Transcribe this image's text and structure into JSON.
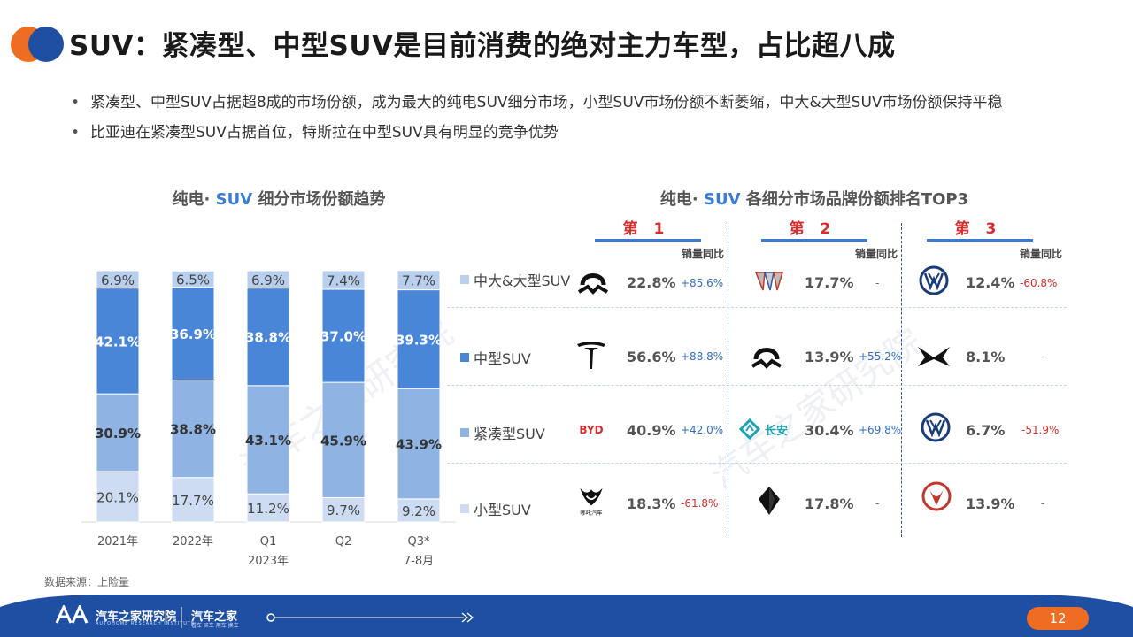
{
  "header": {
    "title": "SUV：紧凑型、中型SUV是目前消费的绝对主力车型，占比超八成"
  },
  "bullets": [
    "紧凑型、中型SUV占据超8成的市场份额，成为最大的纯电SUV细分市场，小型SUV市场份额不断萎缩，中大&大型SUV市场份额保持平稳",
    "比亚迪在紧凑型SUV占据首位，特斯拉在中型SUV具有明显的竞争优势"
  ],
  "left_subtitle": {
    "pre": "纯电· ",
    "hl": "SUV",
    "post": " 细分市场份额趋势"
  },
  "right_subtitle": {
    "pre": "纯电· ",
    "hl": "SUV",
    "post": " 各细分市场品牌份额排名TOP3"
  },
  "chart_data": {
    "type": "bar",
    "stacked": true,
    "categories": [
      "2021年",
      "2022年",
      "Q1",
      "Q2",
      "Q3*"
    ],
    "category_sublabels": [
      "",
      "",
      "2023年",
      "",
      "7-8月"
    ],
    "series": [
      {
        "name": "小型SUV",
        "values": [
          20.1,
          17.7,
          11.2,
          9.7,
          9.2
        ],
        "color": "#cddcf2",
        "label_color": "#444444"
      },
      {
        "name": "紧凑型SUV",
        "values": [
          30.9,
          38.8,
          43.1,
          45.9,
          43.9
        ],
        "color": "#8fb3e3",
        "label_color": "#333333"
      },
      {
        "name": "中型SUV",
        "values": [
          42.1,
          36.9,
          38.8,
          37.0,
          39.3
        ],
        "color": "#4a86d8",
        "label_color": "#ffffff"
      },
      {
        "name": "中大&大型SUV",
        "values": [
          6.9,
          6.5,
          6.9,
          7.4,
          7.7
        ],
        "color": "#b9cfee",
        "label_color": "#444444"
      }
    ],
    "ylim": [
      0,
      100
    ],
    "unit": "%"
  },
  "legend_colors": {
    "中大&大型SUV": "#b9cfee",
    "中型SUV": "#4a86d8",
    "紧凑型SUV": "#8fb3e3",
    "小型SUV": "#cddcf2"
  },
  "ranking": {
    "rank_labels": [
      "第 1",
      "第 2",
      "第 3"
    ],
    "yoy_header": "销量同比",
    "segments": [
      {
        "name": "中大&大型SUV",
        "entries": [
          {
            "brand_icon": "nio-icon",
            "share": "22.8%",
            "yoy": "+85.6%",
            "yoy_type": "pos"
          },
          {
            "brand_icon": "buick-icon",
            "share": "17.7%",
            "yoy": "-",
            "yoy_type": "nil"
          },
          {
            "brand_icon": "volkswagen-icon",
            "share": "12.4%",
            "yoy": "-60.8%",
            "yoy_type": "neg"
          }
        ]
      },
      {
        "name": "中型SUV",
        "entries": [
          {
            "brand_icon": "tesla-icon",
            "share": "56.6%",
            "yoy": "+88.8%",
            "yoy_type": "pos"
          },
          {
            "brand_icon": "nio-icon",
            "share": "13.9%",
            "yoy": "+55.2%",
            "yoy_type": "pos"
          },
          {
            "brand_icon": "xpeng-icon",
            "share": "8.1%",
            "yoy": "-",
            "yoy_type": "nil"
          }
        ]
      },
      {
        "name": "紧凑型SUV",
        "entries": [
          {
            "brand_icon": "byd-icon",
            "share": "40.9%",
            "yoy": "+42.0%",
            "yoy_type": "pos",
            "logo_text": "BYD"
          },
          {
            "brand_icon": "changan-icon",
            "share": "30.4%",
            "yoy": "+69.8%",
            "yoy_type": "pos",
            "logo_text": "长安"
          },
          {
            "brand_icon": "volkswagen-icon",
            "share": "6.7%",
            "yoy": "-51.9%",
            "yoy_type": "neg"
          }
        ]
      },
      {
        "name": "小型SUV",
        "entries": [
          {
            "brand_icon": "nezha-icon",
            "share": "18.3%",
            "yoy": "-61.8%",
            "yoy_type": "neg",
            "logo_text": "哪吒汽车"
          },
          {
            "brand_icon": "aion-icon",
            "share": "17.8%",
            "yoy": "-",
            "yoy_type": "nil"
          },
          {
            "brand_icon": "dongfeng-icon",
            "share": "13.9%",
            "yoy": "-",
            "yoy_type": "nil"
          }
        ]
      }
    ]
  },
  "source": "数据来源：上险量",
  "footer": {
    "org": "汽车之家研究院",
    "org_en": "AUTOHOME RESEARCH INSTITUTE",
    "brand": "汽车之家",
    "brand_sub": "看车·买车·用车·换车",
    "page": "12"
  },
  "colors": {
    "accent_blue": "#3a7bd5",
    "rank_red": "#d62d2d",
    "footer_blue": "#1f4fa3",
    "page_orange": "#ef6d22"
  }
}
